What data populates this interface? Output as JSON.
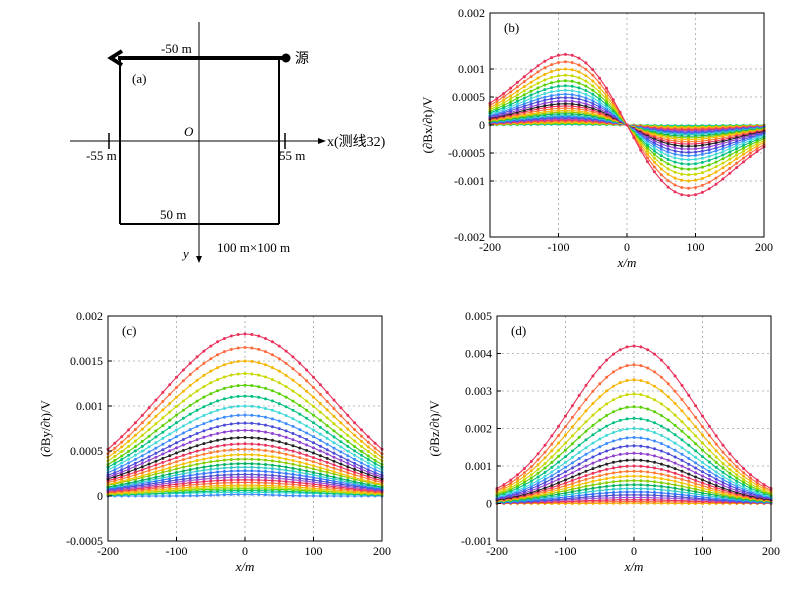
{
  "panel_a": {
    "label": "(a)",
    "source_label": "源",
    "top_side": "-50 m",
    "bottom_side": "50 m",
    "left_side": "-55 m",
    "right_side": "55 m",
    "origin": "O",
    "x_axis": "x(测线32)",
    "y_axis": "y",
    "size": "100 m×100 m"
  },
  "chart_data": [
    {
      "panel_label": "(b)",
      "type": "line",
      "component": "Bx",
      "shape": "odd",
      "xlabel": "x/m",
      "ylabel": "(∂Bx/∂t)/V",
      "xlim": [
        -200,
        200
      ],
      "ylim": [
        -0.002,
        0.002
      ],
      "x_ticks": [
        "-200",
        "-100",
        "0",
        "100",
        "200"
      ],
      "y_ticks": [
        "0.002",
        "0.001",
        "0.0005",
        "0",
        "-0.0005",
        "-0.001",
        "-0.002"
      ],
      "y_tick_values": [
        0.002,
        0.001,
        0.0005,
        0,
        -0.0005,
        -0.001,
        -0.002
      ],
      "x": [
        -200,
        -190,
        -180,
        -170,
        -160,
        -150,
        -140,
        -130,
        -120,
        -110,
        -100,
        -90,
        -80,
        -70,
        -60,
        -50,
        -40,
        -30,
        -20,
        -10,
        0,
        10,
        20,
        30,
        40,
        50,
        60,
        70,
        80,
        90,
        100,
        110,
        120,
        130,
        140,
        150,
        160,
        170,
        180,
        190,
        200
      ],
      "peak_position": 90,
      "peak_values": [
        0.00126,
        0.00113,
        0.001,
        0.00089,
        0.00079,
        0.0007,
        0.00062,
        0.00055,
        0.00049,
        0.00043,
        0.00038,
        0.00034,
        0.0003,
        0.00026,
        0.00023,
        0.0002,
        0.00017,
        0.00015,
        0.00013,
        0.00011,
        9e-05,
        7e-05,
        5e-05,
        4e-05,
        3e-05,
        2e-05,
        1e-05
      ],
      "grid": true
    },
    {
      "panel_label": "(c)",
      "type": "line",
      "component": "By",
      "shape": "even",
      "xlabel": "x/m",
      "ylabel": "(∂By/∂t)/V",
      "xlim": [
        -200,
        200
      ],
      "ylim": [
        -0.0005,
        0.002
      ],
      "x_ticks": [
        "-200",
        "-100",
        "0",
        "100",
        "200"
      ],
      "y_ticks": [
        "0.002",
        "0.0015",
        "0.001",
        "0.0005",
        "0",
        "-0.0005"
      ],
      "y_tick_values": [
        0.002,
        0.0015,
        0.001,
        0.0005,
        0,
        -0.0005
      ],
      "x": [
        -200,
        -190,
        -180,
        -170,
        -160,
        -150,
        -140,
        -130,
        -120,
        -110,
        -100,
        -90,
        -80,
        -70,
        -60,
        -50,
        -40,
        -30,
        -20,
        -10,
        0,
        10,
        20,
        30,
        40,
        50,
        60,
        70,
        80,
        90,
        100,
        110,
        120,
        130,
        140,
        150,
        160,
        170,
        180,
        190,
        200
      ],
      "peak_values": [
        0.0018,
        0.00165,
        0.0015,
        0.00136,
        0.00123,
        0.00111,
        0.001,
        0.0009,
        0.00081,
        0.00073,
        0.00065,
        0.00058,
        0.00052,
        0.00046,
        0.00041,
        0.00036,
        0.00032,
        0.00028,
        0.00024,
        0.00021,
        0.00018,
        0.00015,
        0.00012,
        0.0001,
        8e-05,
        6e-05,
        4e-05,
        2e-05
      ],
      "edge_values": [
        0.00052,
        0.00047,
        0.00043,
        0.00039,
        0.00035,
        0.00032,
        0.00029,
        0.00026,
        0.00023,
        0.00021,
        0.00019,
        0.00017,
        0.00015,
        0.00013,
        0.00012,
        0.0001,
        9e-05,
        8e-05,
        7e-05,
        6e-05,
        5e-05,
        4e-05,
        3e-05,
        2e-05,
        2e-05,
        1e-05,
        1e-05,
        0
      ],
      "grid": true
    },
    {
      "panel_label": "(d)",
      "type": "line",
      "component": "Bz",
      "shape": "even",
      "xlabel": "x/m",
      "ylabel": "(∂Bz/∂t)/V",
      "xlim": [
        -200,
        200
      ],
      "ylim": [
        -0.001,
        0.005
      ],
      "x_ticks": [
        "-200",
        "-100",
        "0",
        "100",
        "200"
      ],
      "y_ticks": [
        "0.005",
        "0.004",
        "0.003",
        "0.002",
        "0.001",
        "0",
        "-0.001"
      ],
      "y_tick_values": [
        0.005,
        0.004,
        0.003,
        0.002,
        0.001,
        0,
        -0.001
      ],
      "x": [
        -200,
        -190,
        -180,
        -170,
        -160,
        -150,
        -140,
        -130,
        -120,
        -110,
        -100,
        -90,
        -80,
        -70,
        -60,
        -50,
        -40,
        -30,
        -20,
        -10,
        0,
        10,
        20,
        30,
        40,
        50,
        60,
        70,
        80,
        90,
        100,
        110,
        120,
        130,
        140,
        150,
        160,
        170,
        180,
        190,
        200
      ],
      "peak_values": [
        0.0042,
        0.0037,
        0.0033,
        0.00292,
        0.00258,
        0.00227,
        0.002,
        0.00176,
        0.00154,
        0.00134,
        0.00116,
        0.001,
        0.00086,
        0.00073,
        0.00061,
        0.0005,
        0.0004,
        0.00031,
        0.00023,
        0.00016,
        0.0001,
        5e-05,
        1e-05
      ],
      "edge_values": [
        0.0004,
        0.00035,
        0.00031,
        0.00027,
        0.00024,
        0.00021,
        0.00018,
        0.00016,
        0.00014,
        0.00012,
        0.0001,
        9e-05,
        8e-05,
        7e-05,
        6e-05,
        5e-05,
        4e-05,
        3e-05,
        2e-05,
        2e-05,
        1e-05,
        1e-05,
        0
      ],
      "grid": true
    }
  ],
  "series_colors": [
    "#e8305a",
    "#ff6a3d",
    "#f5b400",
    "#c8d800",
    "#5ad000",
    "#00c080",
    "#40d8d8",
    "#3c8cff",
    "#4a4ad8",
    "#9040d0",
    "#222222",
    "#e8305a",
    "#ff7a30",
    "#f5c000",
    "#88cc00",
    "#00b060",
    "#30c8c8",
    "#3070ff",
    "#5050d0",
    "#a050d0"
  ]
}
